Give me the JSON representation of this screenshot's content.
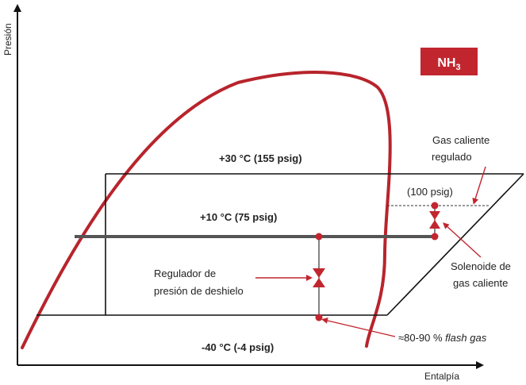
{
  "axes": {
    "y_label": "Presión",
    "x_label": "Entalpía"
  },
  "badge": {
    "text_main": "NH",
    "text_sub": "3",
    "color": "#c1262f"
  },
  "colors": {
    "curve": "#b8242c",
    "accent": "#c1262f",
    "line": "#111111",
    "mid_line": "#555555"
  },
  "levels": {
    "high": "+30 °C (155 psig)",
    "mid": "+10 °C (75 psig)",
    "low": "-40 °C (-4 psig)"
  },
  "labels": {
    "hot_gas_1": "Gas caliente",
    "hot_gas_2": "regulado",
    "psig_100": "(100 psig)",
    "solenoid_1": "Solenoide de",
    "solenoid_2": "gas caliente",
    "regulator_1": "Regulador de",
    "regulator_2": "presión de deshielo",
    "flash_prefix": "≈80-90 % ",
    "flash_italic": "flash gas"
  }
}
